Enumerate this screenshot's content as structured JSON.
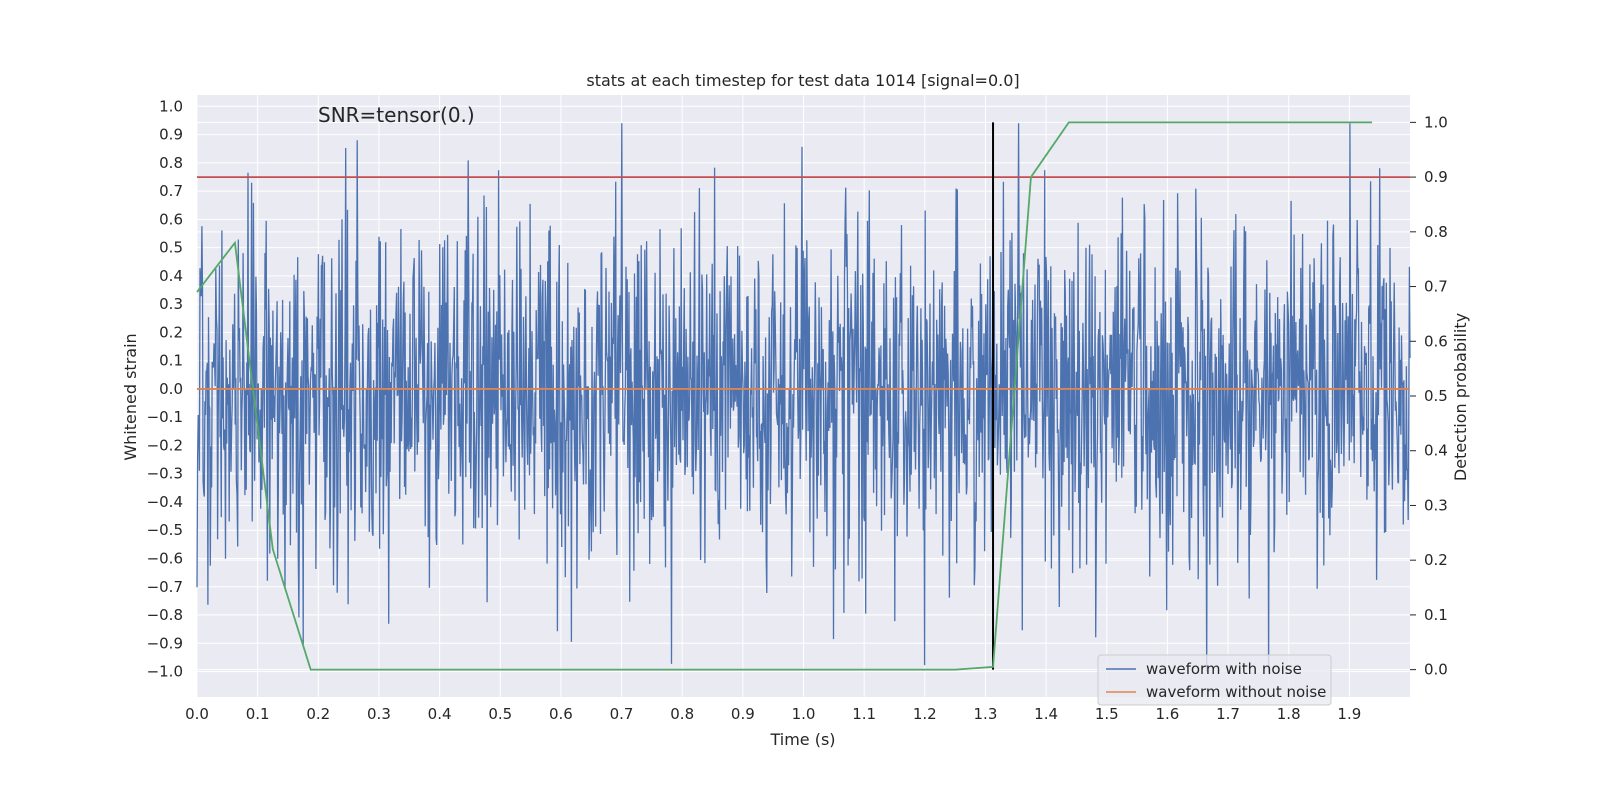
{
  "chart_data": {
    "type": "line",
    "title": "stats at each timestep for test data 1014 [signal=0.0]",
    "annotation": "SNR=tensor(0.)",
    "xlabel": "Time (s)",
    "ylabel": "Whitened strain",
    "y2label": "Detection probability",
    "xlim": [
      0.0,
      2.0
    ],
    "ylim": [
      -1.09,
      1.04
    ],
    "y2lim": [
      -0.05,
      1.05
    ],
    "grid": true,
    "x_ticks": [
      "0.0",
      "0.1",
      "0.2",
      "0.3",
      "0.4",
      "0.5",
      "0.6",
      "0.7",
      "0.8",
      "0.9",
      "1.0",
      "1.1",
      "1.2",
      "1.3",
      "1.4",
      "1.5",
      "1.6",
      "1.7",
      "1.8",
      "1.9"
    ],
    "y_ticks": [
      "1.0",
      "0.9",
      "0.8",
      "0.7",
      "0.6",
      "0.5",
      "0.4",
      "0.3",
      "0.2",
      "0.1",
      "0.0",
      "−0.1",
      "−0.2",
      "−0.3",
      "−0.4",
      "−0.5",
      "−0.6",
      "−0.7",
      "−0.8",
      "−0.9",
      "−1.0"
    ],
    "y2_ticks": [
      "1.0",
      "0.9",
      "0.8",
      "0.7",
      "0.6",
      "0.5",
      "0.4",
      "0.3",
      "0.2",
      "0.1",
      "0.0"
    ],
    "legend": {
      "position": "lower right",
      "entries": [
        "waveform with noise",
        "waveform without noise"
      ]
    },
    "series": [
      {
        "name": "waveform with noise",
        "axis": "left",
        "color": "#4c72b0",
        "description_of_data": "whitened noisy strain, ~2000 samples over 0–2 s, mostly within ±0.6 with excursions toward ±0.95",
        "seed": 1014,
        "n_samples": 2000,
        "amplitude_std": 0.3
      },
      {
        "name": "waveform without noise",
        "axis": "left",
        "color": "#dd8452",
        "x": [
          0.0,
          2.0
        ],
        "y": [
          0.0,
          0.0
        ]
      },
      {
        "axis": "right",
        "color": "#55a868",
        "x": [
          0.0,
          0.0625,
          0.125,
          0.1875,
          0.25,
          0.3125,
          0.375,
          0.4375,
          0.5,
          0.5625,
          0.625,
          0.6875,
          0.75,
          0.8125,
          0.875,
          0.9375,
          1.0,
          1.0625,
          1.125,
          1.1875,
          1.25,
          1.3125,
          1.375,
          1.4375,
          1.5,
          1.5625,
          1.625,
          1.6875,
          1.75,
          1.8125,
          1.875,
          1.9375
        ],
        "y": [
          0.69,
          0.78,
          0.22,
          0.0,
          0.0,
          0.0,
          0.0,
          0.0,
          0.0,
          0.0,
          0.0,
          0.0,
          0.0,
          0.0,
          0.0,
          0.0,
          0.0,
          0.0,
          0.0,
          0.0,
          0.0,
          0.005,
          0.9,
          1.0,
          1.0,
          1.0,
          1.0,
          1.0,
          1.0,
          1.0,
          1.0,
          1.0
        ]
      }
    ],
    "threshold_line": {
      "axis": "right",
      "y": 0.9,
      "color": "#c44e52"
    },
    "vertical_marker": {
      "x": 1.3125,
      "y_range": [
        0.0,
        1.0
      ],
      "color": "#000000"
    }
  }
}
